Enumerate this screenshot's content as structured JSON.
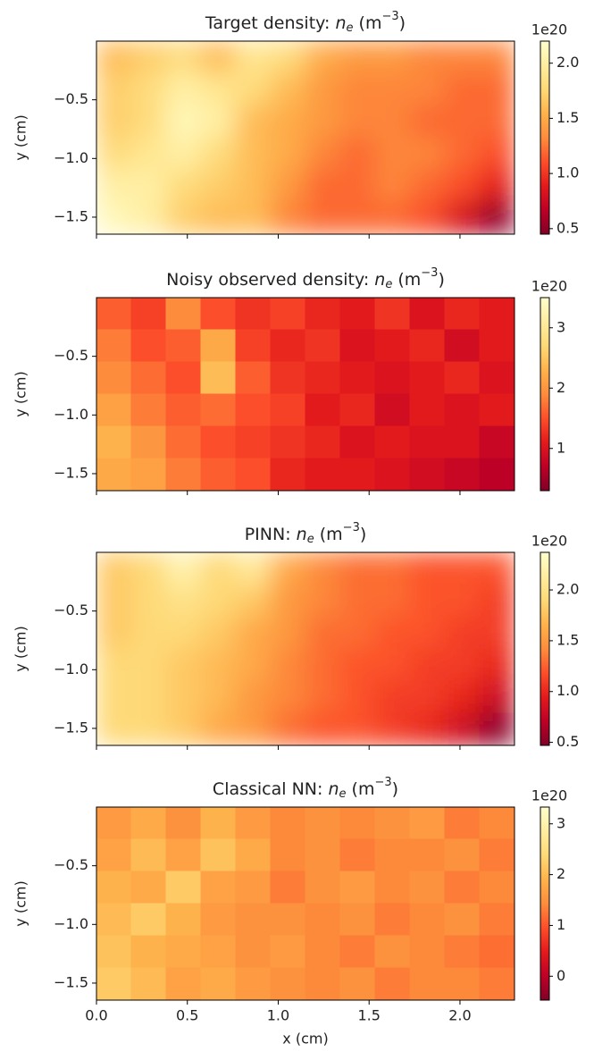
{
  "chart_data": [
    {
      "type": "heatmap",
      "title_parts": [
        "Target density: ",
        "n",
        "e",
        " (m",
        "−3",
        ")"
      ],
      "ylabel": "y (cm)",
      "xlim": [
        0,
        2.3
      ],
      "ylim": [
        -1.645,
        0
      ],
      "xticks": [
        0,
        0.5,
        1,
        1.5,
        2
      ],
      "xticklabels": false,
      "yticks": [
        {
          "value": -0.5,
          "label": "−0.5"
        },
        {
          "value": -1,
          "label": "−1.0"
        },
        {
          "value": -1.5,
          "label": "−1.5"
        }
      ],
      "clim": [
        0.45,
        2.2
      ],
      "cticks": [
        0.5,
        {
          "value": 1,
          "label": "1.0"
        },
        1.5,
        {
          "value": 2,
          "label": "2.0"
        }
      ],
      "coffset": "1e20",
      "smooth": true,
      "cmap": [
        "#800026",
        "#bd0026",
        "#e31a1c",
        "#fc4e2a",
        "#fd8d3c",
        "#feb24c",
        "#fed976",
        "#ffeda0",
        "#ffffcc"
      ],
      "z": [
        [
          1.6,
          1.7,
          1.8,
          1.6,
          1.9,
          1.8,
          1.5,
          1.4,
          1.4,
          1.3,
          1.3,
          1.3
        ],
        [
          1.7,
          1.8,
          2.0,
          1.9,
          1.8,
          1.6,
          1.4,
          1.3,
          1.3,
          1.3,
          1.2,
          1.2
        ],
        [
          1.7,
          1.8,
          2.1,
          2.0,
          1.6,
          1.5,
          1.4,
          1.3,
          1.3,
          1.2,
          1.2,
          1.2
        ],
        [
          1.8,
          1.9,
          2.0,
          1.8,
          1.6,
          1.5,
          1.3,
          1.2,
          1.3,
          1.3,
          1.2,
          1.1
        ],
        [
          2.0,
          2.0,
          1.8,
          1.7,
          1.6,
          1.4,
          1.2,
          1.2,
          1.3,
          1.2,
          1.1,
          0.9
        ],
        [
          2.1,
          2.0,
          1.7,
          1.6,
          1.6,
          1.3,
          1.2,
          1.2,
          1.2,
          1.1,
          0.8,
          0.5
        ]
      ]
    },
    {
      "type": "heatmap",
      "title_parts": [
        "Noisy observed density: ",
        "n",
        "e",
        " (m",
        "−3",
        ")"
      ],
      "ylabel": "y (cm)",
      "xlim": [
        0,
        2.3
      ],
      "ylim": [
        -1.645,
        0
      ],
      "xticks": [
        0,
        0.5,
        1,
        1.5,
        2
      ],
      "xticklabels": false,
      "yticks": [
        {
          "value": -0.5,
          "label": "−0.5"
        },
        {
          "value": -1,
          "label": "−1.0"
        },
        {
          "value": -1.5,
          "label": "−1.5"
        }
      ],
      "clim": [
        0.3,
        3.5
      ],
      "cticks": [
        1,
        2,
        3
      ],
      "coffset": "1e20",
      "smooth": false,
      "cmap": [
        "#800026",
        "#bd0026",
        "#e31a1c",
        "#fc4e2a",
        "#fd8d3c",
        "#feb24c",
        "#fed976",
        "#ffeda0",
        "#ffffcc"
      ],
      "z": [
        [
          1.6,
          1.4,
          1.9,
          1.5,
          1.3,
          1.4,
          1.2,
          1.1,
          1.3,
          1.0,
          1.2,
          1.1
        ],
        [
          1.8,
          1.5,
          1.6,
          2.2,
          1.4,
          1.2,
          1.3,
          1.0,
          1.1,
          1.2,
          0.9,
          1.1
        ],
        [
          1.9,
          1.7,
          1.5,
          2.4,
          1.6,
          1.3,
          1.2,
          1.1,
          1.0,
          1.1,
          1.2,
          1.0
        ],
        [
          2.1,
          1.8,
          1.6,
          1.7,
          1.5,
          1.4,
          1.1,
          1.2,
          0.9,
          1.1,
          1.0,
          1.1
        ],
        [
          2.3,
          2.0,
          1.7,
          1.5,
          1.4,
          1.3,
          1.2,
          1.0,
          1.1,
          1.0,
          1.0,
          0.8
        ],
        [
          2.2,
          2.1,
          1.8,
          1.6,
          1.5,
          1.2,
          1.1,
          1.1,
          1.0,
          0.9,
          0.8,
          0.7
        ]
      ]
    },
    {
      "type": "heatmap",
      "title_parts": [
        "PINN: ",
        "n",
        "e",
        " (m",
        "−3",
        ")"
      ],
      "ylabel": "y (cm)",
      "xlim": [
        0,
        2.3
      ],
      "ylim": [
        -1.645,
        0
      ],
      "xticks": [
        0,
        0.5,
        1,
        1.5,
        2
      ],
      "xticklabels": false,
      "yticks": [
        {
          "value": -0.5,
          "label": "−0.5"
        },
        {
          "value": -1,
          "label": "−1.0"
        },
        {
          "value": -1.5,
          "label": "−1.5"
        }
      ],
      "clim": [
        0.47,
        2.37
      ],
      "cticks": [
        0.5,
        {
          "value": 1,
          "label": "1.0"
        },
        1.5,
        {
          "value": 2,
          "label": "2.0"
        }
      ],
      "coffset": "1e20",
      "smooth": true,
      "cmap": [
        "#800026",
        "#bd0026",
        "#e31a1c",
        "#fc4e2a",
        "#fd8d3c",
        "#feb24c",
        "#fed976",
        "#ffeda0",
        "#ffffcc"
      ],
      "z": [
        [
          1.8,
          1.9,
          2.2,
          1.9,
          2.1,
          1.6,
          1.4,
          1.3,
          1.3,
          1.2,
          1.2,
          1.2
        ],
        [
          1.8,
          1.9,
          2.0,
          1.9,
          1.8,
          1.5,
          1.4,
          1.3,
          1.3,
          1.2,
          1.2,
          1.1
        ],
        [
          1.8,
          1.9,
          1.9,
          1.8,
          1.6,
          1.5,
          1.3,
          1.3,
          1.2,
          1.2,
          1.1,
          1.1
        ],
        [
          1.9,
          1.9,
          1.8,
          1.7,
          1.6,
          1.4,
          1.3,
          1.2,
          1.2,
          1.1,
          1.1,
          1.0
        ],
        [
          1.9,
          1.9,
          1.8,
          1.7,
          1.5,
          1.4,
          1.3,
          1.2,
          1.1,
          1.1,
          1.0,
          0.8
        ],
        [
          1.9,
          1.9,
          1.8,
          1.6,
          1.5,
          1.3,
          1.2,
          1.2,
          1.1,
          1.0,
          0.8,
          0.5
        ]
      ]
    },
    {
      "type": "heatmap",
      "title_parts": [
        "Classical NN: ",
        "n",
        "e",
        " (m",
        "−3",
        ")"
      ],
      "ylabel": "y (cm)",
      "xlabel": "x (cm)",
      "xlim": [
        0,
        2.3
      ],
      "ylim": [
        -1.645,
        0
      ],
      "xticks": [
        {
          "value": 0,
          "label": "0.0"
        },
        0.5,
        {
          "value": 1,
          "label": "1.0"
        },
        1.5,
        {
          "value": 2,
          "label": "2.0"
        }
      ],
      "xticklabels": true,
      "yticks": [
        {
          "value": -0.5,
          "label": "−0.5"
        },
        {
          "value": -1,
          "label": "−1.0"
        },
        {
          "value": -1.5,
          "label": "−1.5"
        }
      ],
      "clim": [
        -0.47,
        3.33
      ],
      "cticks": [
        0,
        1,
        2,
        3
      ],
      "coffset": "1e20",
      "smooth": false,
      "cmap": [
        "#800026",
        "#bd0026",
        "#e31a1c",
        "#fc4e2a",
        "#fd8d3c",
        "#feb24c",
        "#fed976",
        "#ffeda0",
        "#ffffcc"
      ],
      "z": [
        [
          1.6,
          1.8,
          1.5,
          1.9,
          1.6,
          1.4,
          1.5,
          1.4,
          1.5,
          1.6,
          1.3,
          1.4
        ],
        [
          1.7,
          2.0,
          1.7,
          2.1,
          1.8,
          1.4,
          1.5,
          1.3,
          1.4,
          1.4,
          1.5,
          1.3
        ],
        [
          1.9,
          1.8,
          2.2,
          1.7,
          1.6,
          1.3,
          1.5,
          1.6,
          1.4,
          1.5,
          1.3,
          1.4
        ],
        [
          2.0,
          2.2,
          1.9,
          1.6,
          1.5,
          1.5,
          1.4,
          1.5,
          1.3,
          1.4,
          1.5,
          1.3
        ],
        [
          2.1,
          1.9,
          1.8,
          1.7,
          1.5,
          1.6,
          1.4,
          1.3,
          1.5,
          1.4,
          1.3,
          1.2
        ],
        [
          2.2,
          2.0,
          1.7,
          1.8,
          1.6,
          1.5,
          1.4,
          1.5,
          1.3,
          1.4,
          1.4,
          1.3
        ]
      ]
    }
  ]
}
